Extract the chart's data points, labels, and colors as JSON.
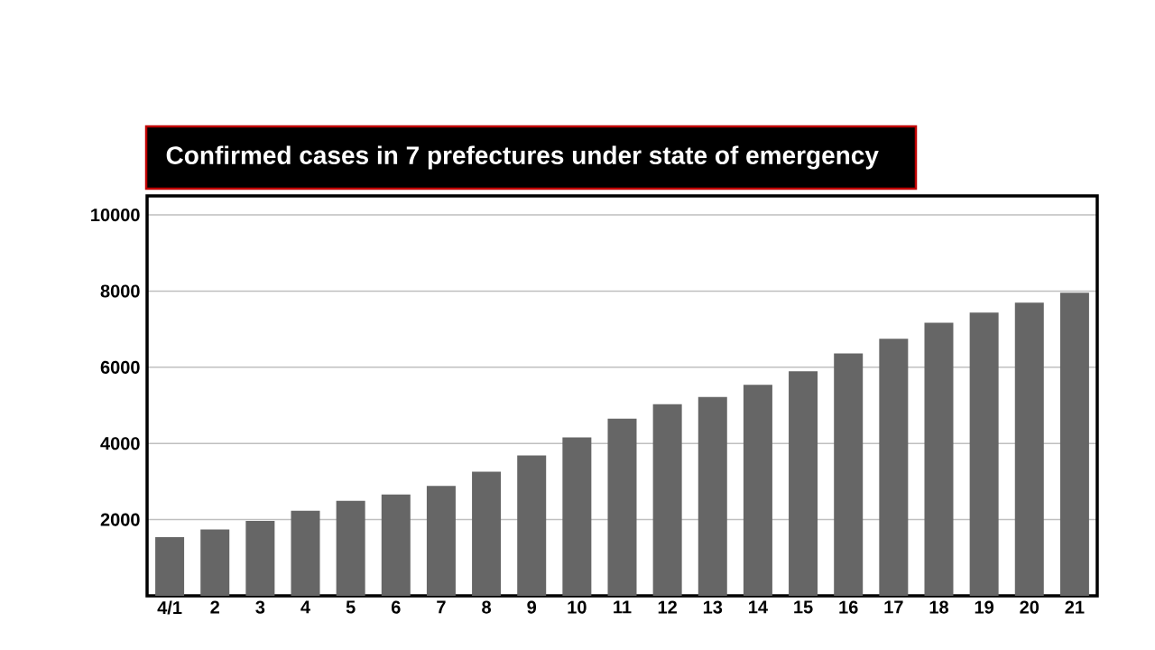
{
  "chart_data": {
    "type": "bar",
    "title": "Confirmed cases in 7 prefectures under state of emergency",
    "categories": [
      "4/1",
      "2",
      "3",
      "4",
      "5",
      "6",
      "7",
      "8",
      "9",
      "10",
      "11",
      "12",
      "13",
      "14",
      "15",
      "16",
      "17",
      "18",
      "19",
      "20",
      "21"
    ],
    "values": [
      1540,
      1744,
      1969,
      2234,
      2493,
      2662,
      2886,
      3256,
      3683,
      4159,
      4650,
      5033,
      5221,
      5541,
      5893,
      6361,
      6746,
      7172,
      7434,
      7697,
      7959
    ],
    "color": "#666666",
    "ylim": [
      0,
      10500
    ],
    "yticks": [
      2000,
      4000,
      6000,
      8000,
      10000
    ],
    "grid": "y"
  }
}
